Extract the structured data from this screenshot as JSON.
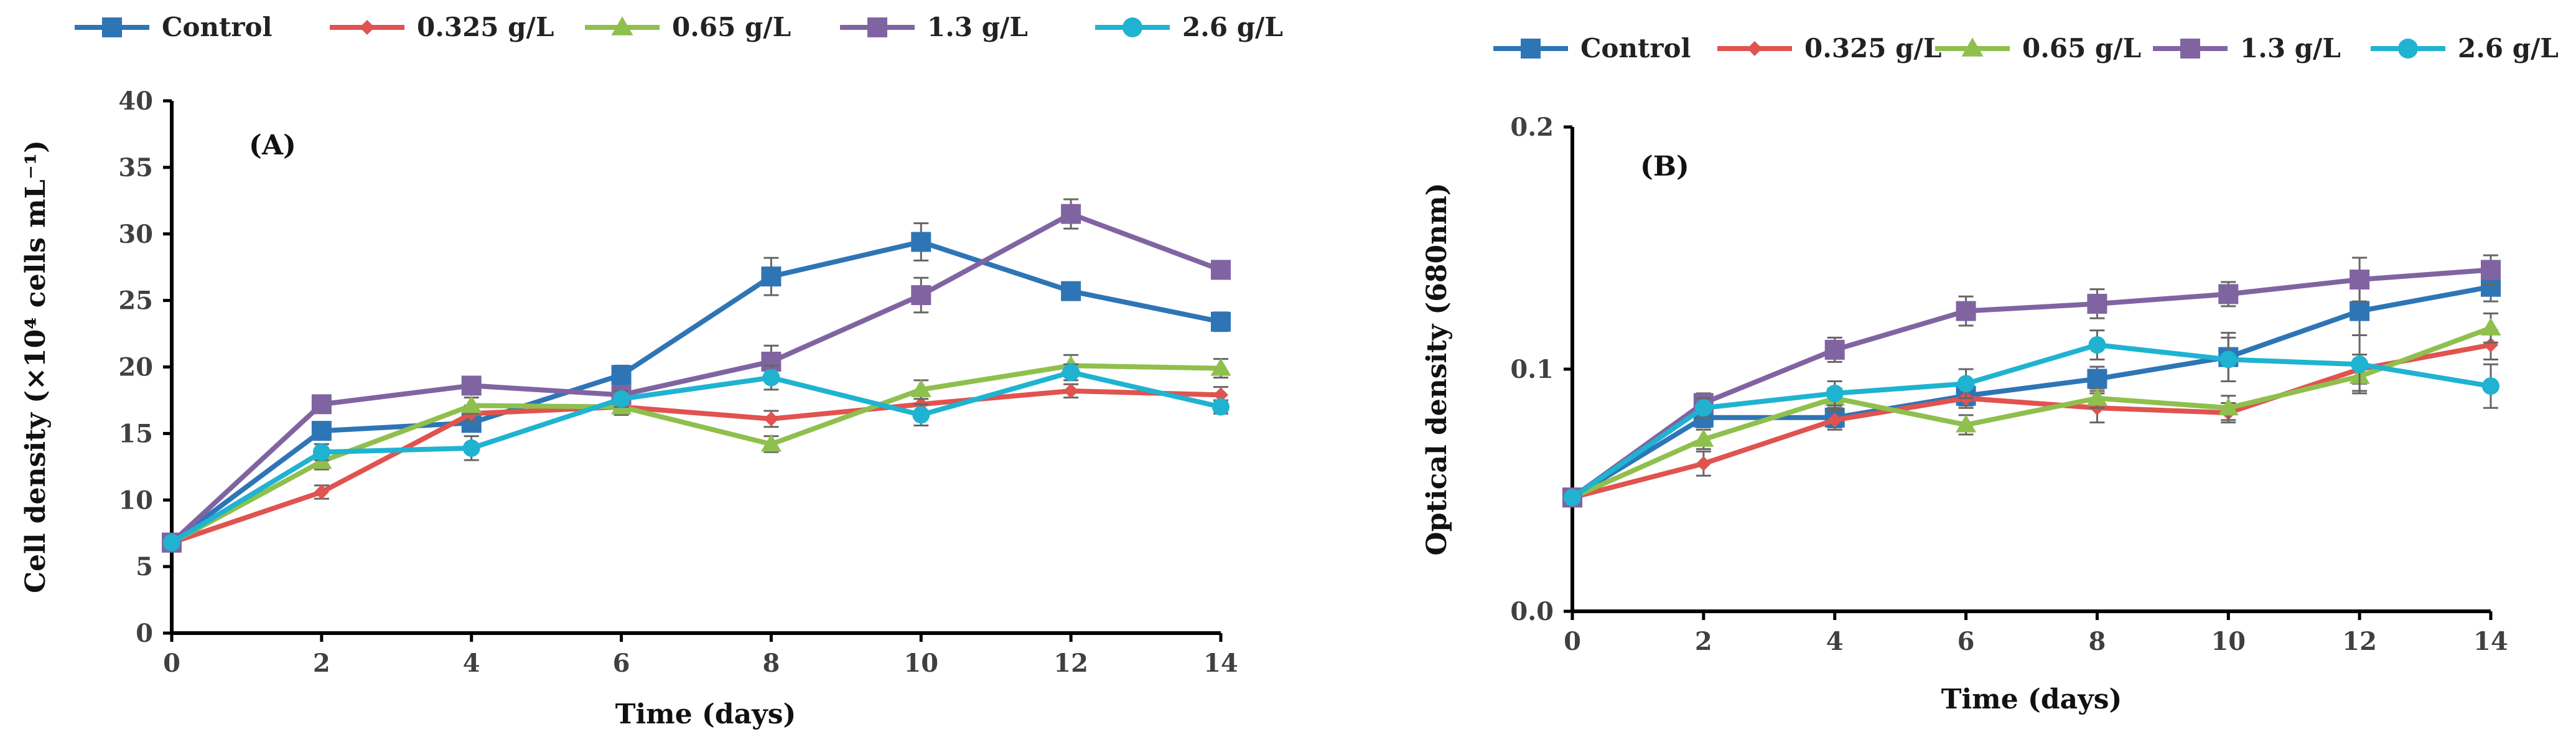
{
  "chart_data": [
    {
      "type": "line",
      "panel_label": "(A)",
      "xlabel": "Time (days)",
      "ylabel": "Cell density (×10⁴ cells mL⁻¹)",
      "x": [
        0,
        2,
        4,
        6,
        8,
        10,
        12,
        14
      ],
      "xlim": [
        0,
        14
      ],
      "ylim": [
        0,
        40
      ],
      "xticks": [
        "0",
        "2",
        "4",
        "6",
        "8",
        "10",
        "12",
        "14"
      ],
      "yticks": [
        "0",
        "5",
        "10",
        "15",
        "20",
        "25",
        "30",
        "35",
        "40"
      ],
      "legend_position": "top",
      "series": [
        {
          "name": "Control",
          "color": "#2e75b6",
          "marker": "square",
          "values": [
            6.8,
            15.2,
            15.8,
            19.4,
            26.8,
            29.4,
            25.7,
            23.4
          ],
          "errors": [
            0.3,
            0.5,
            0.6,
            0.7,
            1.4,
            1.4,
            0.6,
            0.7
          ]
        },
        {
          "name": "0.325 g/L",
          "color": "#e0534f",
          "marker": "diamond",
          "values": [
            6.8,
            10.6,
            16.5,
            17.0,
            16.1,
            17.2,
            18.2,
            17.9
          ],
          "errors": [
            0.3,
            0.5,
            0.6,
            0.5,
            0.6,
            0.6,
            0.5,
            0.6
          ]
        },
        {
          "name": "0.65 g/L",
          "color": "#8fbf4d",
          "marker": "triangle",
          "values": [
            6.8,
            12.9,
            17.1,
            17.0,
            14.2,
            18.3,
            20.1,
            19.9
          ],
          "errors": [
            0.3,
            0.6,
            0.6,
            0.6,
            0.6,
            0.7,
            0.8,
            0.7
          ]
        },
        {
          "name": "1.3 g/L",
          "color": "#8064a2",
          "marker": "square",
          "values": [
            6.8,
            17.2,
            18.6,
            17.9,
            20.4,
            25.4,
            31.5,
            27.3
          ],
          "errors": [
            0.3,
            0.5,
            0.6,
            0.6,
            1.2,
            1.3,
            1.1,
            0.6
          ]
        },
        {
          "name": "2.6 g/L",
          "color": "#1fb3d1",
          "marker": "circle",
          "values": [
            6.8,
            13.6,
            13.9,
            17.6,
            19.2,
            16.4,
            19.6,
            17.0
          ],
          "errors": [
            0.3,
            0.6,
            0.9,
            0.6,
            0.9,
            0.8,
            0.6,
            0.5
          ]
        }
      ]
    },
    {
      "type": "line",
      "panel_label": "(B)",
      "xlabel": "Time (days)",
      "ylabel": "Optical density (680nm)",
      "x": [
        0,
        2,
        4,
        6,
        8,
        10,
        12,
        14
      ],
      "xlim": [
        0,
        14
      ],
      "ylim": [
        0,
        0.2
      ],
      "xticks": [
        "0",
        "2",
        "4",
        "6",
        "8",
        "10",
        "12",
        "14"
      ],
      "yticks": [
        "0.0",
        "0.1",
        "0.2"
      ],
      "legend_position": "top",
      "series": [
        {
          "name": "Control",
          "color": "#2e75b6",
          "marker": "square",
          "values": [
            0.047,
            0.08,
            0.08,
            0.089,
            0.096,
            0.105,
            0.124,
            0.134
          ],
          "errors": [
            0.002,
            0.004,
            0.004,
            0.004,
            0.005,
            0.01,
            0.01,
            0.006
          ]
        },
        {
          "name": "0.325 g/L",
          "color": "#e0534f",
          "marker": "diamond",
          "values": [
            0.047,
            0.061,
            0.079,
            0.088,
            0.084,
            0.082,
            0.1,
            0.11
          ],
          "errors": [
            0.002,
            0.005,
            0.004,
            0.004,
            0.006,
            0.004,
            0.006,
            0.006
          ]
        },
        {
          "name": "0.65 g/L",
          "color": "#8fbf4d",
          "marker": "triangle",
          "values": [
            0.047,
            0.071,
            0.088,
            0.077,
            0.088,
            0.084,
            0.097,
            0.117
          ],
          "errors": [
            0.002,
            0.004,
            0.004,
            0.004,
            0.004,
            0.005,
            0.006,
            0.006
          ]
        },
        {
          "name": "1.3 g/L",
          "color": "#8064a2",
          "marker": "square",
          "values": [
            0.047,
            0.086,
            0.108,
            0.124,
            0.127,
            0.131,
            0.137,
            0.141
          ],
          "errors": [
            0.002,
            0.004,
            0.005,
            0.006,
            0.006,
            0.005,
            0.009,
            0.006
          ]
        },
        {
          "name": "2.6 g/L",
          "color": "#1fb3d1",
          "marker": "circle",
          "values": [
            0.047,
            0.084,
            0.09,
            0.094,
            0.11,
            0.104,
            0.102,
            0.093
          ],
          "errors": [
            0.002,
            0.004,
            0.005,
            0.006,
            0.006,
            0.009,
            0.012,
            0.009
          ]
        }
      ]
    }
  ]
}
